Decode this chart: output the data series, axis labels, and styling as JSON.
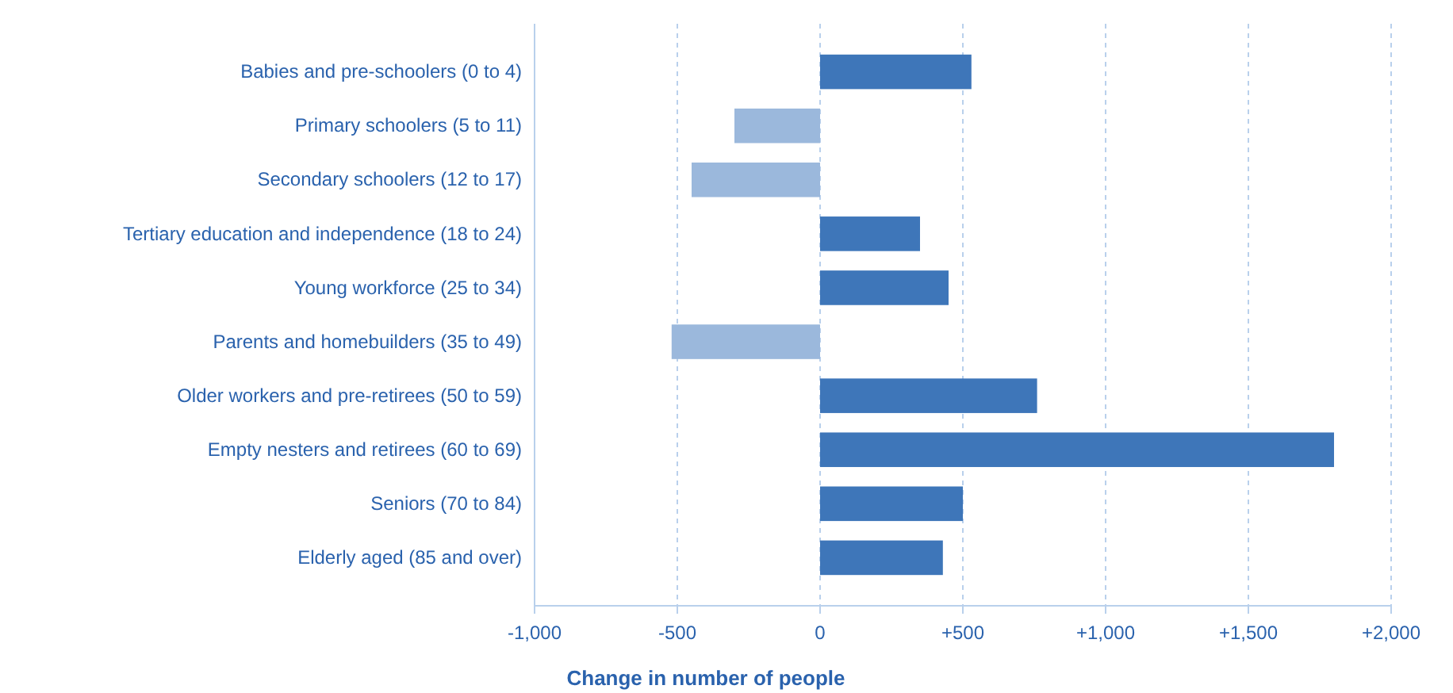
{
  "chart_data": {
    "type": "bar",
    "orientation": "horizontal",
    "xlabel": "Change in number of people",
    "categories": [
      "Babies and pre-schoolers (0 to 4)",
      "Primary schoolers (5 to 11)",
      "Secondary schoolers (12 to 17)",
      "Tertiary education and independence (18 to 24)",
      "Young workforce (25 to 34)",
      "Parents and homebuilders (35 to 49)",
      "Older workers and pre-retirees (50 to 59)",
      "Empty nesters and retirees (60 to 69)",
      "Seniors (70 to 84)",
      "Elderly aged (85 and over)"
    ],
    "values": [
      530,
      -300,
      -450,
      350,
      450,
      -520,
      760,
      1800,
      500,
      430
    ],
    "colors": [
      "#3e76b9",
      "#9bb8dc",
      "#9bb8dc",
      "#3e76b9",
      "#3e76b9",
      "#9bb8dc",
      "#3e76b9",
      "#3e76b9",
      "#3e76b9",
      "#3e76b9"
    ],
    "xlim": [
      -1000,
      2000
    ],
    "xticks": [
      {
        "value": -1000,
        "label": "-1,000"
      },
      -500,
      0,
      {
        "value": 500,
        "label": "+500"
      },
      {
        "value": 1000,
        "label": "+1,000"
      },
      {
        "value": 1500,
        "label": "+1,500"
      },
      {
        "value": 2000,
        "label": "+2,000"
      }
    ],
    "grid": "x"
  }
}
